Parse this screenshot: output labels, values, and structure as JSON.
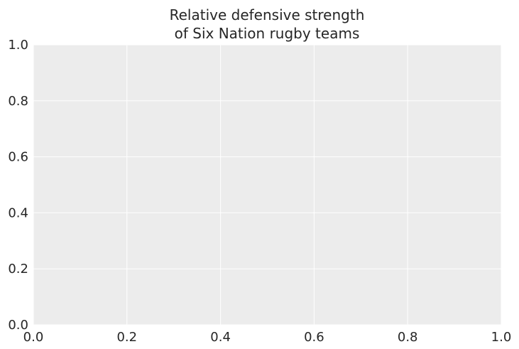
{
  "chart_data": {
    "type": "line",
    "title_lines": [
      "Relative defensive strength",
      "of Six Nation rugby teams"
    ],
    "xlabel": "",
    "ylabel": "",
    "xlim": [
      0,
      1
    ],
    "ylim": [
      0,
      1
    ],
    "xticks": [
      "0.0",
      "0.2",
      "0.4",
      "0.6",
      "0.8",
      "1.0"
    ],
    "yticks": [
      "0.0",
      "0.2",
      "0.4",
      "0.6",
      "0.8",
      "1.0"
    ],
    "series": [],
    "grid": true,
    "colors": {
      "plot_background": "#ececec",
      "grid": "#ffffff",
      "text": "#262626"
    }
  }
}
